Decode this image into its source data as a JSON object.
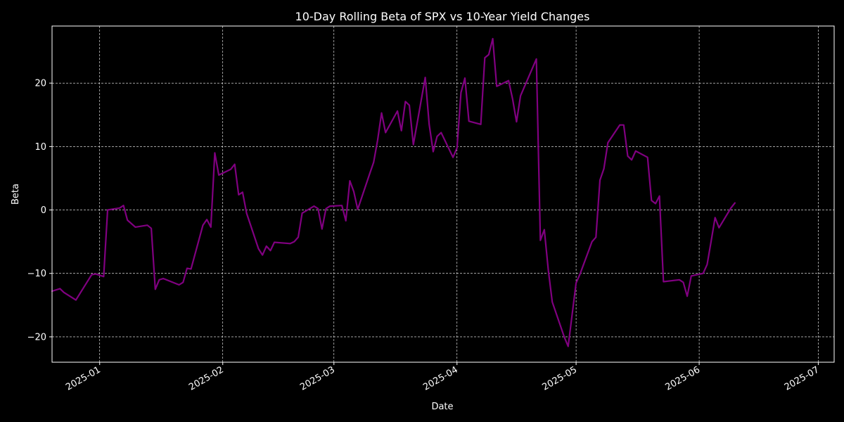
{
  "colors": {
    "background": "#000000",
    "axes": "#ffffff",
    "grid": "#ffffff",
    "line": "#800080"
  },
  "chart_data": {
    "type": "line",
    "title": "10-Day Rolling Beta of SPX vs 10-Year Yield Changes",
    "xlabel": "Date",
    "ylabel": "Beta",
    "x_axis_type": "date",
    "xlim": [
      "2024-12-20",
      "2025-07-05"
    ],
    "ylim": [
      -24,
      29
    ],
    "x_ticks": [
      "2025-01-01",
      "2025-02-01",
      "2025-03-01",
      "2025-04-01",
      "2025-05-01",
      "2025-06-01",
      "2025-07-01"
    ],
    "x_tick_labels": [
      "2025-01",
      "2025-02",
      "2025-03",
      "2025-04",
      "2025-05",
      "2025-06",
      "2025-07"
    ],
    "y_ticks": [
      -20,
      -10,
      0,
      10,
      20
    ],
    "y_tick_labels": [
      "−20",
      "−10",
      "0",
      "10",
      "20"
    ],
    "grid": true,
    "legend": "none",
    "series": [
      {
        "color": "#800080",
        "x": [
          "2024-12-20",
          "2024-12-22",
          "2024-12-23",
          "2024-12-26",
          "2024-12-27",
          "2024-12-30",
          "2024-12-31",
          "2025-01-02",
          "2025-01-03",
          "2025-01-06",
          "2025-01-07",
          "2025-01-08",
          "2025-01-10",
          "2025-01-13",
          "2025-01-14",
          "2025-01-15",
          "2025-01-16",
          "2025-01-17",
          "2025-01-21",
          "2025-01-22",
          "2025-01-23",
          "2025-01-24",
          "2025-01-27",
          "2025-01-28",
          "2025-01-29",
          "2025-01-30",
          "2025-01-31",
          "2025-02-03",
          "2025-02-04",
          "2025-02-05",
          "2025-02-06",
          "2025-02-07",
          "2025-02-10",
          "2025-02-11",
          "2025-02-12",
          "2025-02-13",
          "2025-02-14",
          "2025-02-18",
          "2025-02-19",
          "2025-02-20",
          "2025-02-21",
          "2025-02-24",
          "2025-02-25",
          "2025-02-26",
          "2025-02-27",
          "2025-02-28",
          "2025-03-03",
          "2025-03-04",
          "2025-03-05",
          "2025-03-06",
          "2025-03-07",
          "2025-03-10",
          "2025-03-11",
          "2025-03-12",
          "2025-03-13",
          "2025-03-14",
          "2025-03-17",
          "2025-03-18",
          "2025-03-19",
          "2025-03-20",
          "2025-03-21",
          "2025-03-24",
          "2025-03-25",
          "2025-03-26",
          "2025-03-27",
          "2025-03-28",
          "2025-03-31",
          "2025-04-01",
          "2025-04-02",
          "2025-04-03",
          "2025-04-04",
          "2025-04-07",
          "2025-04-08",
          "2025-04-09",
          "2025-04-10",
          "2025-04-11",
          "2025-04-14",
          "2025-04-15",
          "2025-04-16",
          "2025-04-17",
          "2025-04-21",
          "2025-04-22",
          "2025-04-23",
          "2025-04-24",
          "2025-04-25",
          "2025-04-28",
          "2025-04-29",
          "2025-05-01",
          "2025-05-02",
          "2025-05-05",
          "2025-05-06",
          "2025-05-07",
          "2025-05-08",
          "2025-05-09",
          "2025-05-12",
          "2025-05-13",
          "2025-05-14",
          "2025-05-15",
          "2025-05-16",
          "2025-05-19",
          "2025-05-20",
          "2025-05-21",
          "2025-05-22",
          "2025-05-23",
          "2025-05-27",
          "2025-05-28",
          "2025-05-29",
          "2025-05-30",
          "2025-06-02",
          "2025-06-03",
          "2025-06-04",
          "2025-06-05",
          "2025-06-06",
          "2025-06-09",
          "2025-06-10"
        ],
        "y": [
          -12.8,
          -12.4,
          -13.0,
          -14.2,
          -13.2,
          -10.2,
          -10.1,
          -10.5,
          0.0,
          0.3,
          0.7,
          -1.6,
          -2.7,
          -2.4,
          -2.9,
          -12.5,
          -11.0,
          -10.8,
          -11.8,
          -11.4,
          -9.2,
          -9.3,
          -2.4,
          -1.5,
          -2.7,
          9.0,
          5.5,
          6.4,
          7.2,
          2.4,
          2.8,
          -0.5,
          -6.1,
          -7.1,
          -5.7,
          -6.4,
          -5.1,
          -5.3,
          -5.0,
          -4.3,
          -0.5,
          0.6,
          0.2,
          -3.0,
          0.2,
          0.6,
          0.7,
          -1.7,
          4.6,
          2.9,
          0.1,
          5.7,
          7.5,
          11.0,
          15.3,
          12.2,
          15.6,
          12.5,
          17.1,
          16.5,
          10.3,
          20.9,
          13.5,
          9.2,
          11.6,
          12.2,
          8.3,
          9.8,
          18.5,
          20.8,
          14.0,
          13.5,
          24.0,
          24.5,
          27.0,
          19.5,
          20.4,
          17.5,
          13.9,
          18.0,
          23.8,
          -4.8,
          -3.1,
          -9.5,
          -14.5,
          -20.0,
          -21.5,
          -11.5,
          -10.1,
          -5.0,
          -4.3,
          4.7,
          6.5,
          10.6,
          13.4,
          13.4,
          8.5,
          7.9,
          9.3,
          8.3,
          1.5,
          1.0,
          2.2,
          -11.3,
          -11.0,
          -11.4,
          -13.6,
          -10.4,
          -10.0,
          -8.6,
          -5.0,
          -1.2,
          -2.8,
          0.3,
          1.1
        ]
      }
    ]
  }
}
